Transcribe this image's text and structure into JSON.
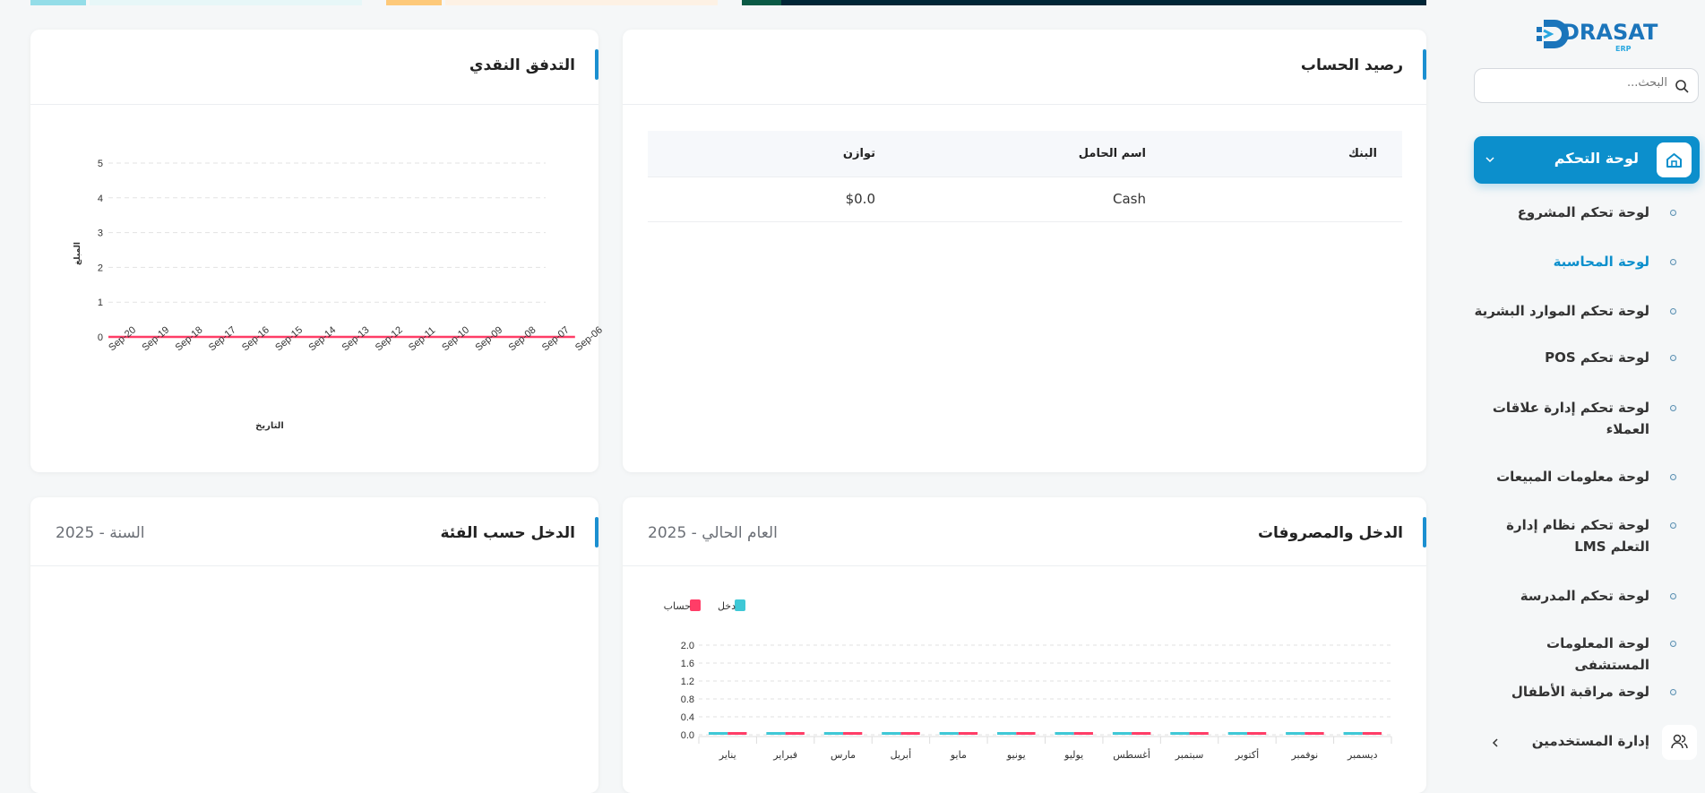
{
  "top_cards": [
    {
      "accent": "#94dde8",
      "bg": "#e7f7f8"
    },
    {
      "accent": "#fdc97a",
      "bg": "#fdf1e4"
    },
    {
      "accent": "#0a5a45",
      "bg": "#002636"
    }
  ],
  "sidebar": {
    "logo": {
      "text": "DRASAT",
      "sub": "ERP"
    },
    "search_placeholder": "البحث...",
    "active": {
      "label": "لوحة التحكم",
      "icon": "home-icon"
    },
    "items": [
      {
        "label": "لوحة تحكم المشروع",
        "active": false
      },
      {
        "label": "لوحة المحاسبة",
        "active": true
      },
      {
        "label": "لوحة تحكم الموارد البشرية",
        "active": false
      },
      {
        "label": "لوحة تحكم POS",
        "active": false
      },
      {
        "label": "لوحة تحكم إدارة علاقات العملاء",
        "active": false
      },
      {
        "label": "لوحة معلومات المبيعات",
        "active": false
      },
      {
        "label": "لوحة تحكم نظام إدارة التعلم LMS",
        "active": false
      },
      {
        "label": "لوحة تحكم المدرسة",
        "active": false
      },
      {
        "label": "لوحة المعلومات المستشفى",
        "active": false
      },
      {
        "label": "لوحة مراقبة الأطفال",
        "active": false
      }
    ],
    "users": {
      "label": "إدارة المستخدمين",
      "icon": "users-icon"
    }
  },
  "account_balance": {
    "title": "رصيد الحساب",
    "columns": [
      "البنك",
      "اسم الحامل",
      "توازن"
    ],
    "rows": [
      [
        "",
        "Cash",
        "$0.0"
      ]
    ]
  },
  "cash_flow": {
    "title": "التدفق النقدي"
  },
  "income_expense": {
    "title": "الدخل والمصروفات",
    "subtitle": "العام الحالي - 2025"
  },
  "income_by_category": {
    "title": "الدخل حسب الفئة",
    "subtitle": "السنة - 2025"
  },
  "chart_data": [
    {
      "type": "line",
      "xlabel": "التاريخ",
      "ylabel": "المبلغ",
      "ylim": [
        0,
        5
      ],
      "yticks": [
        "0",
        "1",
        "2",
        "3",
        "4",
        "5"
      ],
      "grid": true,
      "x": [
        "Sep-20",
        "Sep-19",
        "Sep-18",
        "Sep-17",
        "Sep-16",
        "Sep-15",
        "Sep-14",
        "Sep-13",
        "Sep-12",
        "Sep-11",
        "Sep-10",
        "Sep-09",
        "Sep-08",
        "Sep-07",
        "Sep-06"
      ],
      "series": [
        {
          "color": "#ff3d67",
          "values": [
            0,
            0,
            0,
            0,
            0,
            0,
            0,
            0,
            0,
            0,
            0,
            0,
            0,
            0,
            0
          ]
        }
      ]
    },
    {
      "type": "bar",
      "ylim": [
        0,
        2
      ],
      "yticks": [
        "0.0",
        "0.4",
        "0.8",
        "1.2",
        "1.6",
        "2.0"
      ],
      "grid": true,
      "legend": "top-left",
      "categories": [
        "يناير",
        "فبراير",
        "مارس",
        "أبريل",
        "مايو",
        "يونيو",
        "يوليو",
        "أغسطس",
        "سبتمبر",
        "أكتوبر",
        "نوفمبر",
        "ديسمبر"
      ],
      "series": [
        {
          "name": "دخل",
          "color": "#3fc8d6",
          "values": [
            0,
            0,
            0,
            0,
            0,
            0,
            0,
            0,
            0,
            0,
            0,
            0
          ]
        },
        {
          "name": "حساب",
          "color": "#ff3d67",
          "values": [
            0,
            0,
            0,
            0,
            0,
            0,
            0,
            0,
            0,
            0,
            0,
            0
          ]
        }
      ]
    }
  ]
}
